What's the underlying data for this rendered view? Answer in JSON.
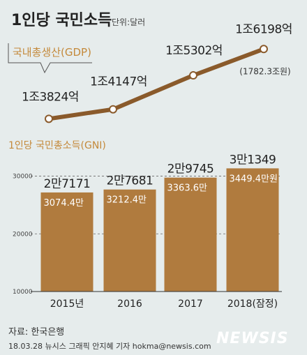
{
  "title": "1인당 국민소득",
  "unit": "단위:달러",
  "chart_data": [
    {
      "type": "line",
      "label": "국내총생산(GDP)",
      "x": [
        "2015",
        "2016",
        "2017",
        "2018"
      ],
      "values": [
        13824,
        14147,
        15302,
        16198
      ],
      "value_labels": [
        "1조3824억",
        "1조4147억",
        "1조5302억",
        "1조6198억"
      ],
      "extra_label": "(1782.3조원)",
      "color": "#8a5a2b"
    },
    {
      "type": "bar",
      "label": "1인당 국민총소득(GNI)",
      "categories": [
        "2015년",
        "2016",
        "2017",
        "2018(잠정)"
      ],
      "values": [
        27171,
        27681,
        29745,
        31349
      ],
      "value_labels": [
        "2만7171",
        "2만7681",
        "2만9745",
        "3만1349"
      ],
      "inner_labels": [
        "3074.4만",
        "3212.4만",
        "3363.6만",
        "3449.4만원"
      ],
      "yticks": [
        10000,
        20000,
        30000
      ],
      "ylim": [
        10000,
        32000
      ],
      "color": "#b07b3e"
    }
  ],
  "source": "자료: 한국은행",
  "credit": "18.03.28 뉴시스 그래픽 안지혜 기자 hokma@newsis.com",
  "logo": "NEWSIS"
}
